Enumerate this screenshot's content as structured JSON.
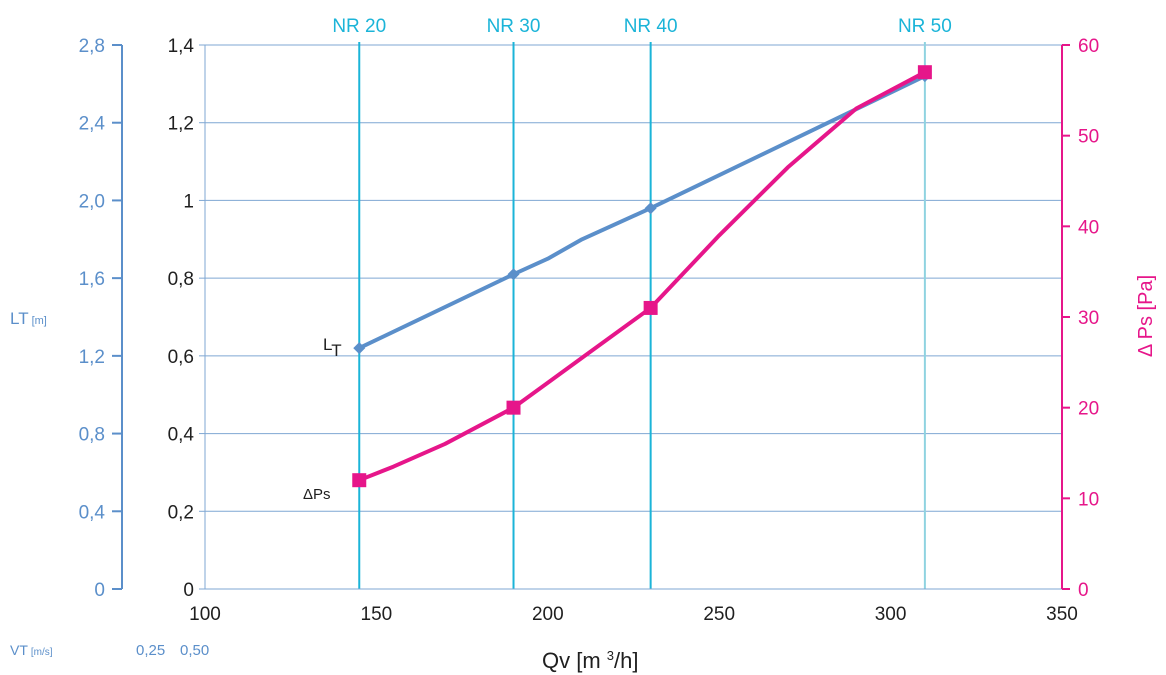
{
  "colors": {
    "blue_series": "#5b8fca",
    "magenta_series": "#e6168a",
    "nr_lines": "#1bb4d8",
    "nr_line_last": "#8fd3e0",
    "grid": "#7fa7d3",
    "axis_text": "#1f1f1f",
    "outer_axis": "#5b8fca"
  },
  "chart_data": {
    "type": "line",
    "x": {
      "label_main": "Qv [m ",
      "label_sup": "3",
      "label_tail": "/h]",
      "range": [
        100,
        350
      ],
      "ticks": [
        "100",
        "150",
        "200",
        "250",
        "300",
        "350"
      ]
    },
    "y_left_inner": {
      "range": [
        0,
        1.4
      ],
      "ticks": [
        "0",
        "0,2",
        "0,4",
        "0,6",
        "0,8",
        "1",
        "1,2",
        "1,4"
      ]
    },
    "y_left_outer": {
      "label_main": "LT",
      "label_unit": "[m]",
      "range": [
        0,
        2.8
      ],
      "ticks": [
        "0",
        "0,4",
        "0,8",
        "1,2",
        "1,6",
        "2,0",
        "2,4",
        "2,8"
      ]
    },
    "y_right": {
      "label": "Δ Ps [Pa]",
      "range": [
        0,
        60
      ],
      "ticks": [
        "0",
        "10",
        "20",
        "30",
        "40",
        "50",
        "60"
      ]
    },
    "vt_axis": {
      "label_main": "VT",
      "label_unit": "[m/s]",
      "values": [
        "0,25",
        "0,50"
      ]
    },
    "nr_lines": [
      {
        "label": "NR 20",
        "x": 145
      },
      {
        "label": "NR 30",
        "x": 190
      },
      {
        "label": "NR 40",
        "x": 230
      },
      {
        "label": "NR 50",
        "x": 310
      }
    ],
    "series": [
      {
        "label_main": "L",
        "label_sub": "T",
        "axis": "left_inner",
        "marker": "diamond",
        "points": [
          [
            145,
            0.62
          ],
          [
            190,
            0.81
          ],
          [
            200,
            0.85
          ],
          [
            210,
            0.9
          ],
          [
            230,
            0.98
          ],
          [
            310,
            1.32
          ]
        ],
        "markers_at": [
          145,
          190,
          230,
          310
        ]
      },
      {
        "label": "ΔPs",
        "axis": "right",
        "marker": "square",
        "points": [
          [
            145,
            12
          ],
          [
            155,
            13.5
          ],
          [
            170,
            16
          ],
          [
            190,
            20
          ],
          [
            210,
            25.5
          ],
          [
            230,
            31
          ],
          [
            250,
            39
          ],
          [
            270,
            46.5
          ],
          [
            290,
            53
          ],
          [
            310,
            57
          ]
        ],
        "markers_at": [
          145,
          190,
          230,
          310
        ]
      }
    ],
    "grid": true
  }
}
